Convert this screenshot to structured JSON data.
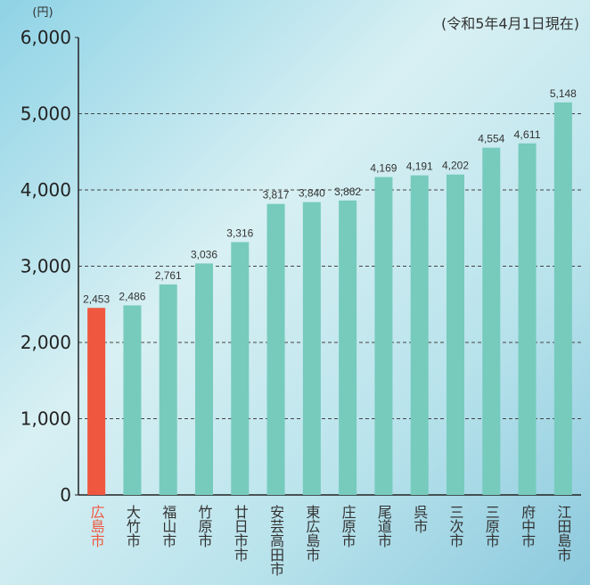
{
  "chart_data": {
    "type": "bar",
    "y_unit": "(円)",
    "subtitle": "(令和5年4月1日現在)",
    "categories": [
      "広島市",
      "大竹市",
      "福山市",
      "竹原市",
      "廿日市市",
      "安芸高田市",
      "東広島市",
      "庄原市",
      "尾道市",
      "呉市",
      "三次市",
      "三原市",
      "府中市",
      "江田島市"
    ],
    "values": [
      2453,
      2486,
      2761,
      3036,
      3316,
      3817,
      3840,
      3862,
      4169,
      4191,
      4202,
      4554,
      4611,
      5148
    ],
    "value_labels": [
      "2,453",
      "2,486",
      "2,761",
      "3,036",
      "3,316",
      "3,817",
      "3,840",
      "3,862",
      "4,169",
      "4,191",
      "4,202",
      "4,554",
      "4,611",
      "5,148"
    ],
    "color": "#76cbbd",
    "colors": [
      "#f0573f",
      "#76cbbd",
      "#76cbbd",
      "#76cbbd",
      "#76cbbd",
      "#76cbbd",
      "#76cbbd",
      "#76cbbd",
      "#76cbbd",
      "#76cbbd",
      "#76cbbd",
      "#76cbbd",
      "#76cbbd",
      "#76cbbd"
    ],
    "ylim": [
      0,
      6000
    ],
    "yticks": [
      0,
      {
        "value": 1000,
        "label": "1,000"
      },
      {
        "value": 2000,
        "label": "2,000"
      },
      {
        "value": 3000,
        "label": "3,000"
      },
      {
        "value": 4000,
        "label": "4,000"
      },
      {
        "value": 5000,
        "label": "5,000"
      },
      {
        "value": 6000,
        "label": "6,000"
      }
    ],
    "grid": true
  }
}
